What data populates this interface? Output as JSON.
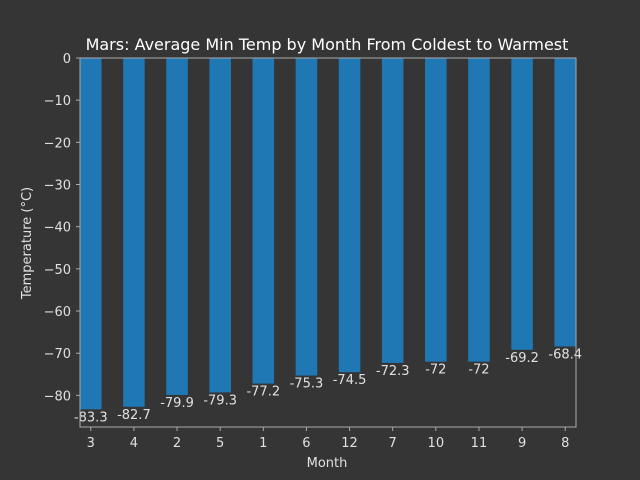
{
  "chart_data": {
    "type": "bar",
    "title": "Mars: Average Min Temp by Month From Coldest to Warmest",
    "xlabel": "Month",
    "ylabel": "Temperature (°C)",
    "categories": [
      "3",
      "4",
      "2",
      "5",
      "1",
      "6",
      "12",
      "7",
      "10",
      "11",
      "9",
      "8"
    ],
    "values": [
      -83.3,
      -82.7,
      -79.9,
      -79.3,
      -77.2,
      -75.3,
      -74.5,
      -72.3,
      -72,
      -72,
      -69.2,
      -68.4
    ],
    "value_labels": [
      "-83.3",
      "-82.7",
      "-79.9",
      "-79.3",
      "-77.2",
      "-75.3",
      "-74.5",
      "-72.3",
      "-72",
      "-72",
      "-69.2",
      "-68.4"
    ],
    "ylim": [
      -87.5,
      0
    ],
    "yticks": [
      0,
      -10,
      -20,
      -30,
      -40,
      -50,
      -60,
      -70,
      -80
    ],
    "ytick_labels": [
      "0",
      "−10",
      "−20",
      "−30",
      "−40",
      "−50",
      "−60",
      "−70",
      "−80"
    ],
    "grid": false,
    "colors": {
      "bar": "#1f77b4",
      "background": "#353535",
      "axis": "#aaaaaa",
      "text": "#e0e0e0",
      "title": "#ffffff"
    }
  }
}
